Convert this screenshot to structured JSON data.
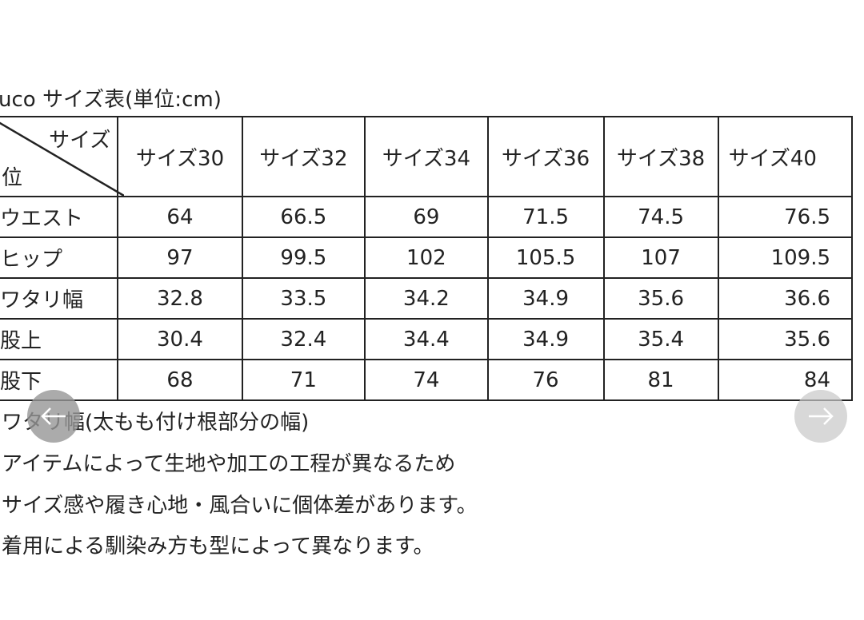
{
  "title": "uco サイズ表(単位:cm)",
  "table": {
    "corner_top": "サイズ",
    "corner_bottom": "位",
    "columns": [
      "サイズ30",
      "サイズ32",
      "サイズ34",
      "サイズ36",
      "サイズ38",
      "サイズ40"
    ],
    "rows": [
      {
        "label": "ウエスト",
        "values": [
          "64",
          "66.5",
          "69",
          "71.5",
          "74.5",
          "76.5"
        ]
      },
      {
        "label": "ヒップ",
        "values": [
          "97",
          "99.5",
          "102",
          "105.5",
          "107",
          "109.5"
        ]
      },
      {
        "label": "ワタリ幅",
        "values": [
          "32.8",
          "33.5",
          "34.2",
          "34.9",
          "35.6",
          "36.6"
        ]
      },
      {
        "label": "股上",
        "values": [
          "30.4",
          "32.4",
          "34.4",
          "34.9",
          "35.4",
          "35.6"
        ]
      },
      {
        "label": "股下",
        "values": [
          "68",
          "71",
          "74",
          "76",
          "81",
          "84"
        ]
      }
    ]
  },
  "notes": [
    "ワタリ幅(太もも付け根部分の幅)",
    "アイテムによって生地や加工の工程が異なるため",
    "サイズ感や履き心地・風合いに個体差があります。",
    "着用による馴染み方も型によって異なります。"
  ],
  "nav": {
    "prev_icon": "arrow-left-icon",
    "next_icon": "arrow-right-icon"
  }
}
